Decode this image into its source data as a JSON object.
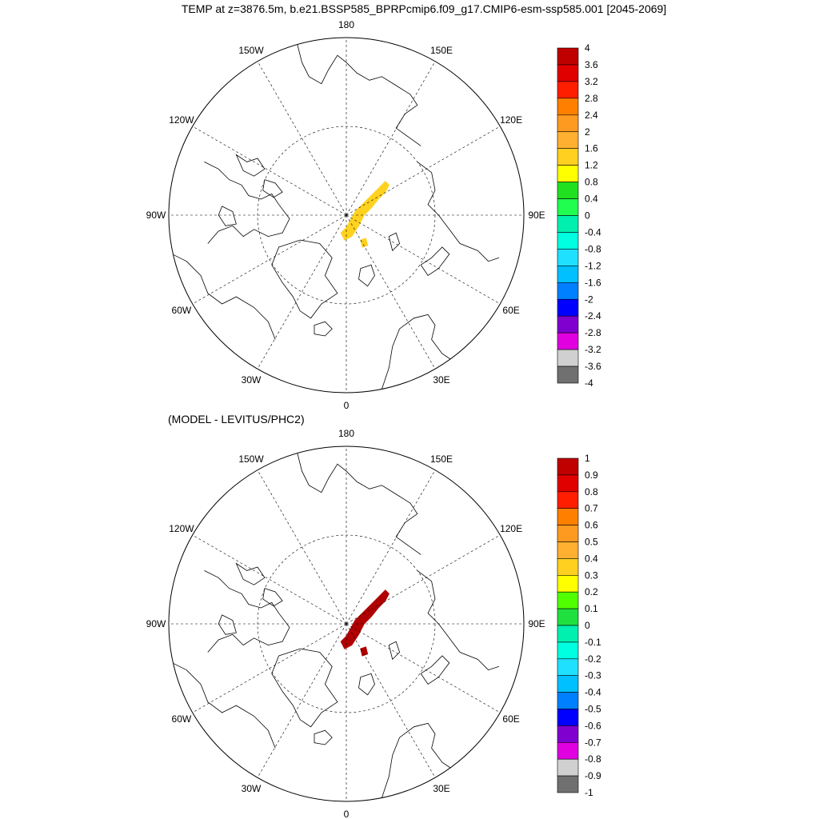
{
  "title": "TEMP at z=3876.5m, b.e21.BSSP585_BPRPcmip6.f09_g17.CMIP6-esm-ssp585.001 [2045-2069]",
  "colors": {
    "land_outline": "#000000",
    "grid": "#000000",
    "background": "#ffffff"
  },
  "panels": [
    {
      "id": "top",
      "subtitle": "",
      "lon_labels": {
        "0": "0",
        "30E": "30E",
        "60E": "60E",
        "90E": "90E",
        "120E": "120E",
        "150E": "150E",
        "180": "180",
        "150W": "150W",
        "120W": "120W",
        "90W": "90W",
        "60W": "60W",
        "30W": "30W"
      },
      "anomaly_color": "#ffd220",
      "anomaly_value_range": [
        1.2,
        1.6
      ],
      "colorbar": {
        "labels": [
          "4",
          "3.6",
          "3.2",
          "2.8",
          "2.4",
          "2",
          "1.6",
          "1.2",
          "0.8",
          "0.4",
          "0",
          "-0.4",
          "-0.8",
          "-1.2",
          "-1.6",
          "-2",
          "-2.4",
          "-2.8",
          "-3.2",
          "-3.6",
          "-4"
        ],
        "colors": [
          "#c00000",
          "#e00000",
          "#ff1e00",
          "#ff8000",
          "#ff9a20",
          "#ffb030",
          "#ffd020",
          "#ffff00",
          "#20e020",
          "#20ff50",
          "#00f0b0",
          "#00ffe0",
          "#20e0ff",
          "#00c0ff",
          "#0080ff",
          "#0000ff",
          "#8000d0",
          "#e000e0",
          "#d0d0d0",
          "#707070"
        ]
      }
    },
    {
      "id": "bottom",
      "subtitle": "(MODEL - LEVITUS/PHC2)",
      "lon_labels": {
        "0": "0",
        "30E": "30E",
        "60E": "60E",
        "90E": "90E",
        "120E": "120E",
        "150E": "150E",
        "180": "180",
        "150W": "150W",
        "120W": "120W",
        "90W": "90W",
        "60W": "60W",
        "30W": "30W"
      },
      "anomaly_color": "#b00000",
      "anomaly_value_range": [
        0.9,
        1.0
      ],
      "colorbar": {
        "labels": [
          "1",
          "0.9",
          "0.8",
          "0.7",
          "0.6",
          "0.5",
          "0.4",
          "0.3",
          "0.2",
          "0.1",
          "0",
          "-0.1",
          "-0.2",
          "-0.3",
          "-0.4",
          "-0.5",
          "-0.6",
          "-0.7",
          "-0.8",
          "-0.9",
          "-1"
        ],
        "colors": [
          "#c00000",
          "#e00000",
          "#ff1e00",
          "#ff8000",
          "#ff9a20",
          "#ffb030",
          "#ffd020",
          "#ffff00",
          "#50ff00",
          "#20e040",
          "#00f0b0",
          "#00ffe0",
          "#20e0ff",
          "#00c0ff",
          "#0080ff",
          "#0000ff",
          "#8000d0",
          "#e000e0",
          "#d0d0d0",
          "#707070"
        ]
      }
    }
  ]
}
